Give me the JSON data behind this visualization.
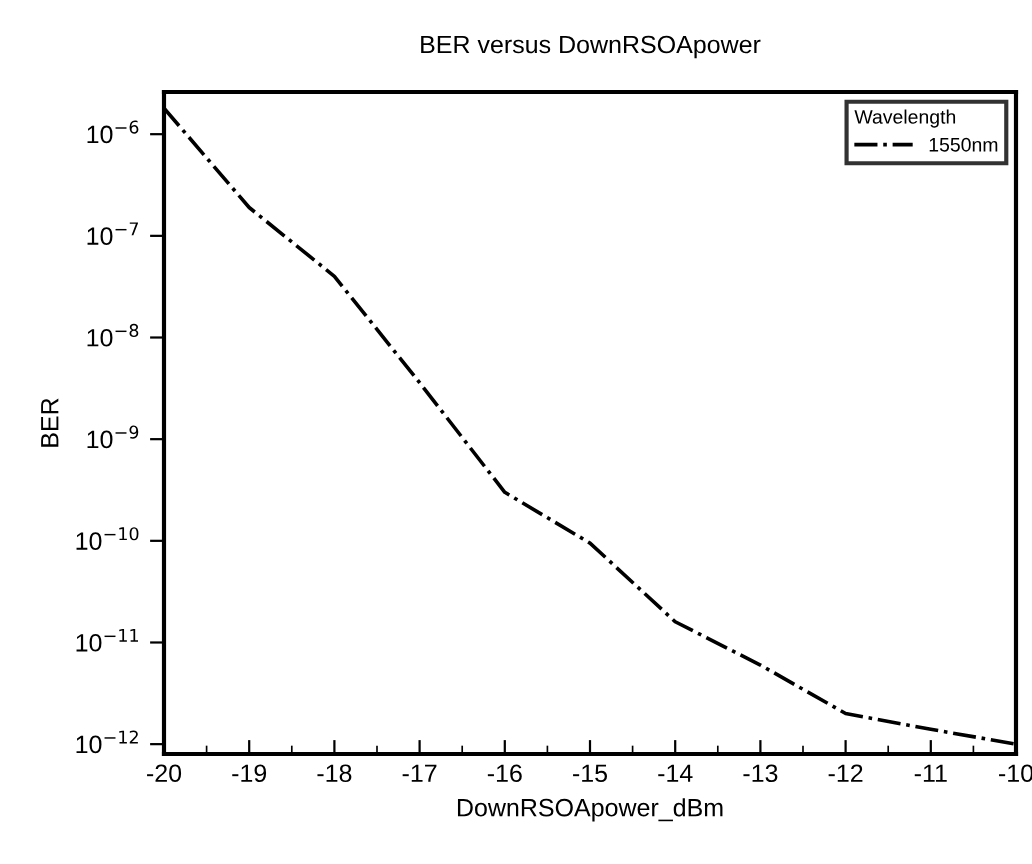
{
  "chart_data": {
    "type": "line",
    "title": "BER versus DownRSOApower",
    "xlabel": "DownRSOApower_dBm",
    "ylabel": "BER",
    "legend_title": "Wavelength",
    "x": [
      -20,
      -19,
      -18,
      -17,
      -16,
      -15,
      -14,
      -13,
      -12,
      -11,
      -10
    ],
    "series": [
      {
        "name": "1550nm",
        "color": "#000000",
        "values": [
          1.8e-06,
          1.9e-07,
          4e-08,
          3.6e-09,
          3e-10,
          9.5e-11,
          1.6e-11,
          6e-12,
          2e-12,
          1.4e-12,
          1e-12
        ]
      }
    ],
    "xlim": [
      -20,
      -10
    ],
    "xticks": [
      -20,
      -19,
      -18,
      -17,
      -16,
      -15,
      -14,
      -13,
      -12,
      -11,
      -10
    ],
    "ylim": [
      8e-13,
      2.6e-06
    ],
    "yticks": [
      {
        "value": 1e-06,
        "label": "10$^{−6}$"
      },
      {
        "value": 1e-07,
        "label": "10$^{−7}$"
      },
      {
        "value": 1e-08,
        "label": "10$^{−8}$"
      },
      {
        "value": 1e-09,
        "label": "10$^{−9}$"
      },
      {
        "value": 1e-10,
        "label": "10$^{−10}$"
      },
      {
        "value": 1e-11,
        "label": "10$^{−11}$"
      },
      {
        "value": 1e-12,
        "label": "10$^{−12}$"
      }
    ],
    "log": "y",
    "grid": false,
    "legend": "top right",
    "marker": "none",
    "line_style": "dashdot"
  }
}
